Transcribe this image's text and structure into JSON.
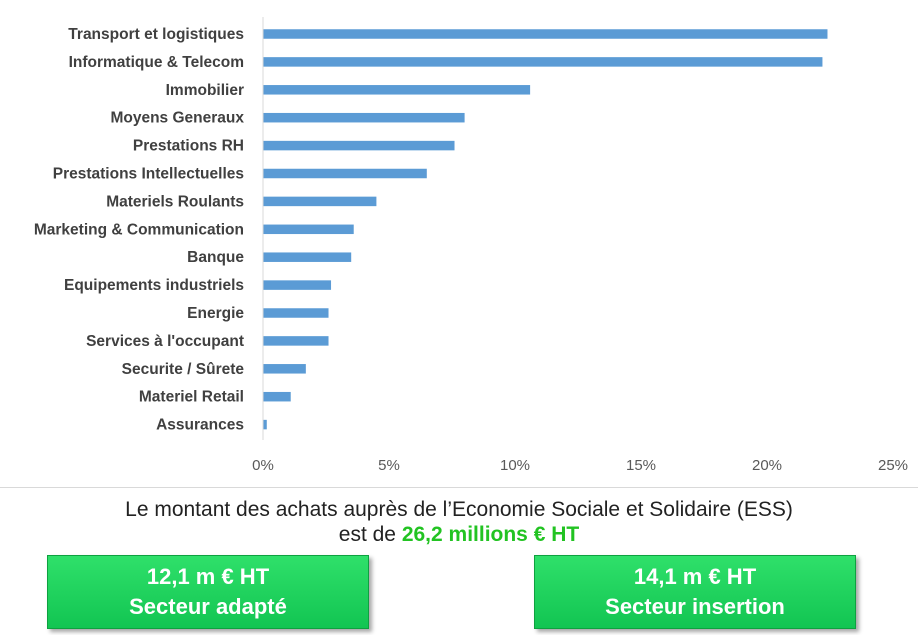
{
  "chart_data": {
    "type": "bar",
    "orientation": "horizontal",
    "categories": [
      "Transport et logistiques",
      "Informatique & Telecom",
      "Immobilier",
      "Moyens Generaux",
      "Prestations RH",
      "Prestations Intellectuelles",
      "Materiels Roulants",
      "Marketing & Communication",
      "Banque",
      "Equipements industriels",
      "Energie",
      "Services à l'occupant",
      "Securite / Sûrete",
      "Materiel Retail",
      "Assurances"
    ],
    "values": [
      22.4,
      22.2,
      10.6,
      8.0,
      7.6,
      6.5,
      4.5,
      3.6,
      3.5,
      2.7,
      2.6,
      2.6,
      1.7,
      1.1,
      0.15
    ],
    "xlim": [
      0,
      25
    ],
    "xticks": [
      "0%",
      "5%",
      "10%",
      "15%",
      "20%",
      "25%"
    ],
    "grid": false,
    "bar_color": "#5b9bd5"
  },
  "summary": {
    "line1": "Le montant des achats auprès de l’Economie Sociale et Solidaire (ESS)",
    "line2_prefix": "est de ",
    "line2_amount": "26,2 millions € HT"
  },
  "boxes": [
    {
      "amount": "12,1 m € HT",
      "label": "Secteur adapté"
    },
    {
      "amount": "14,1 m € HT",
      "label": "Secteur insertion"
    }
  ]
}
